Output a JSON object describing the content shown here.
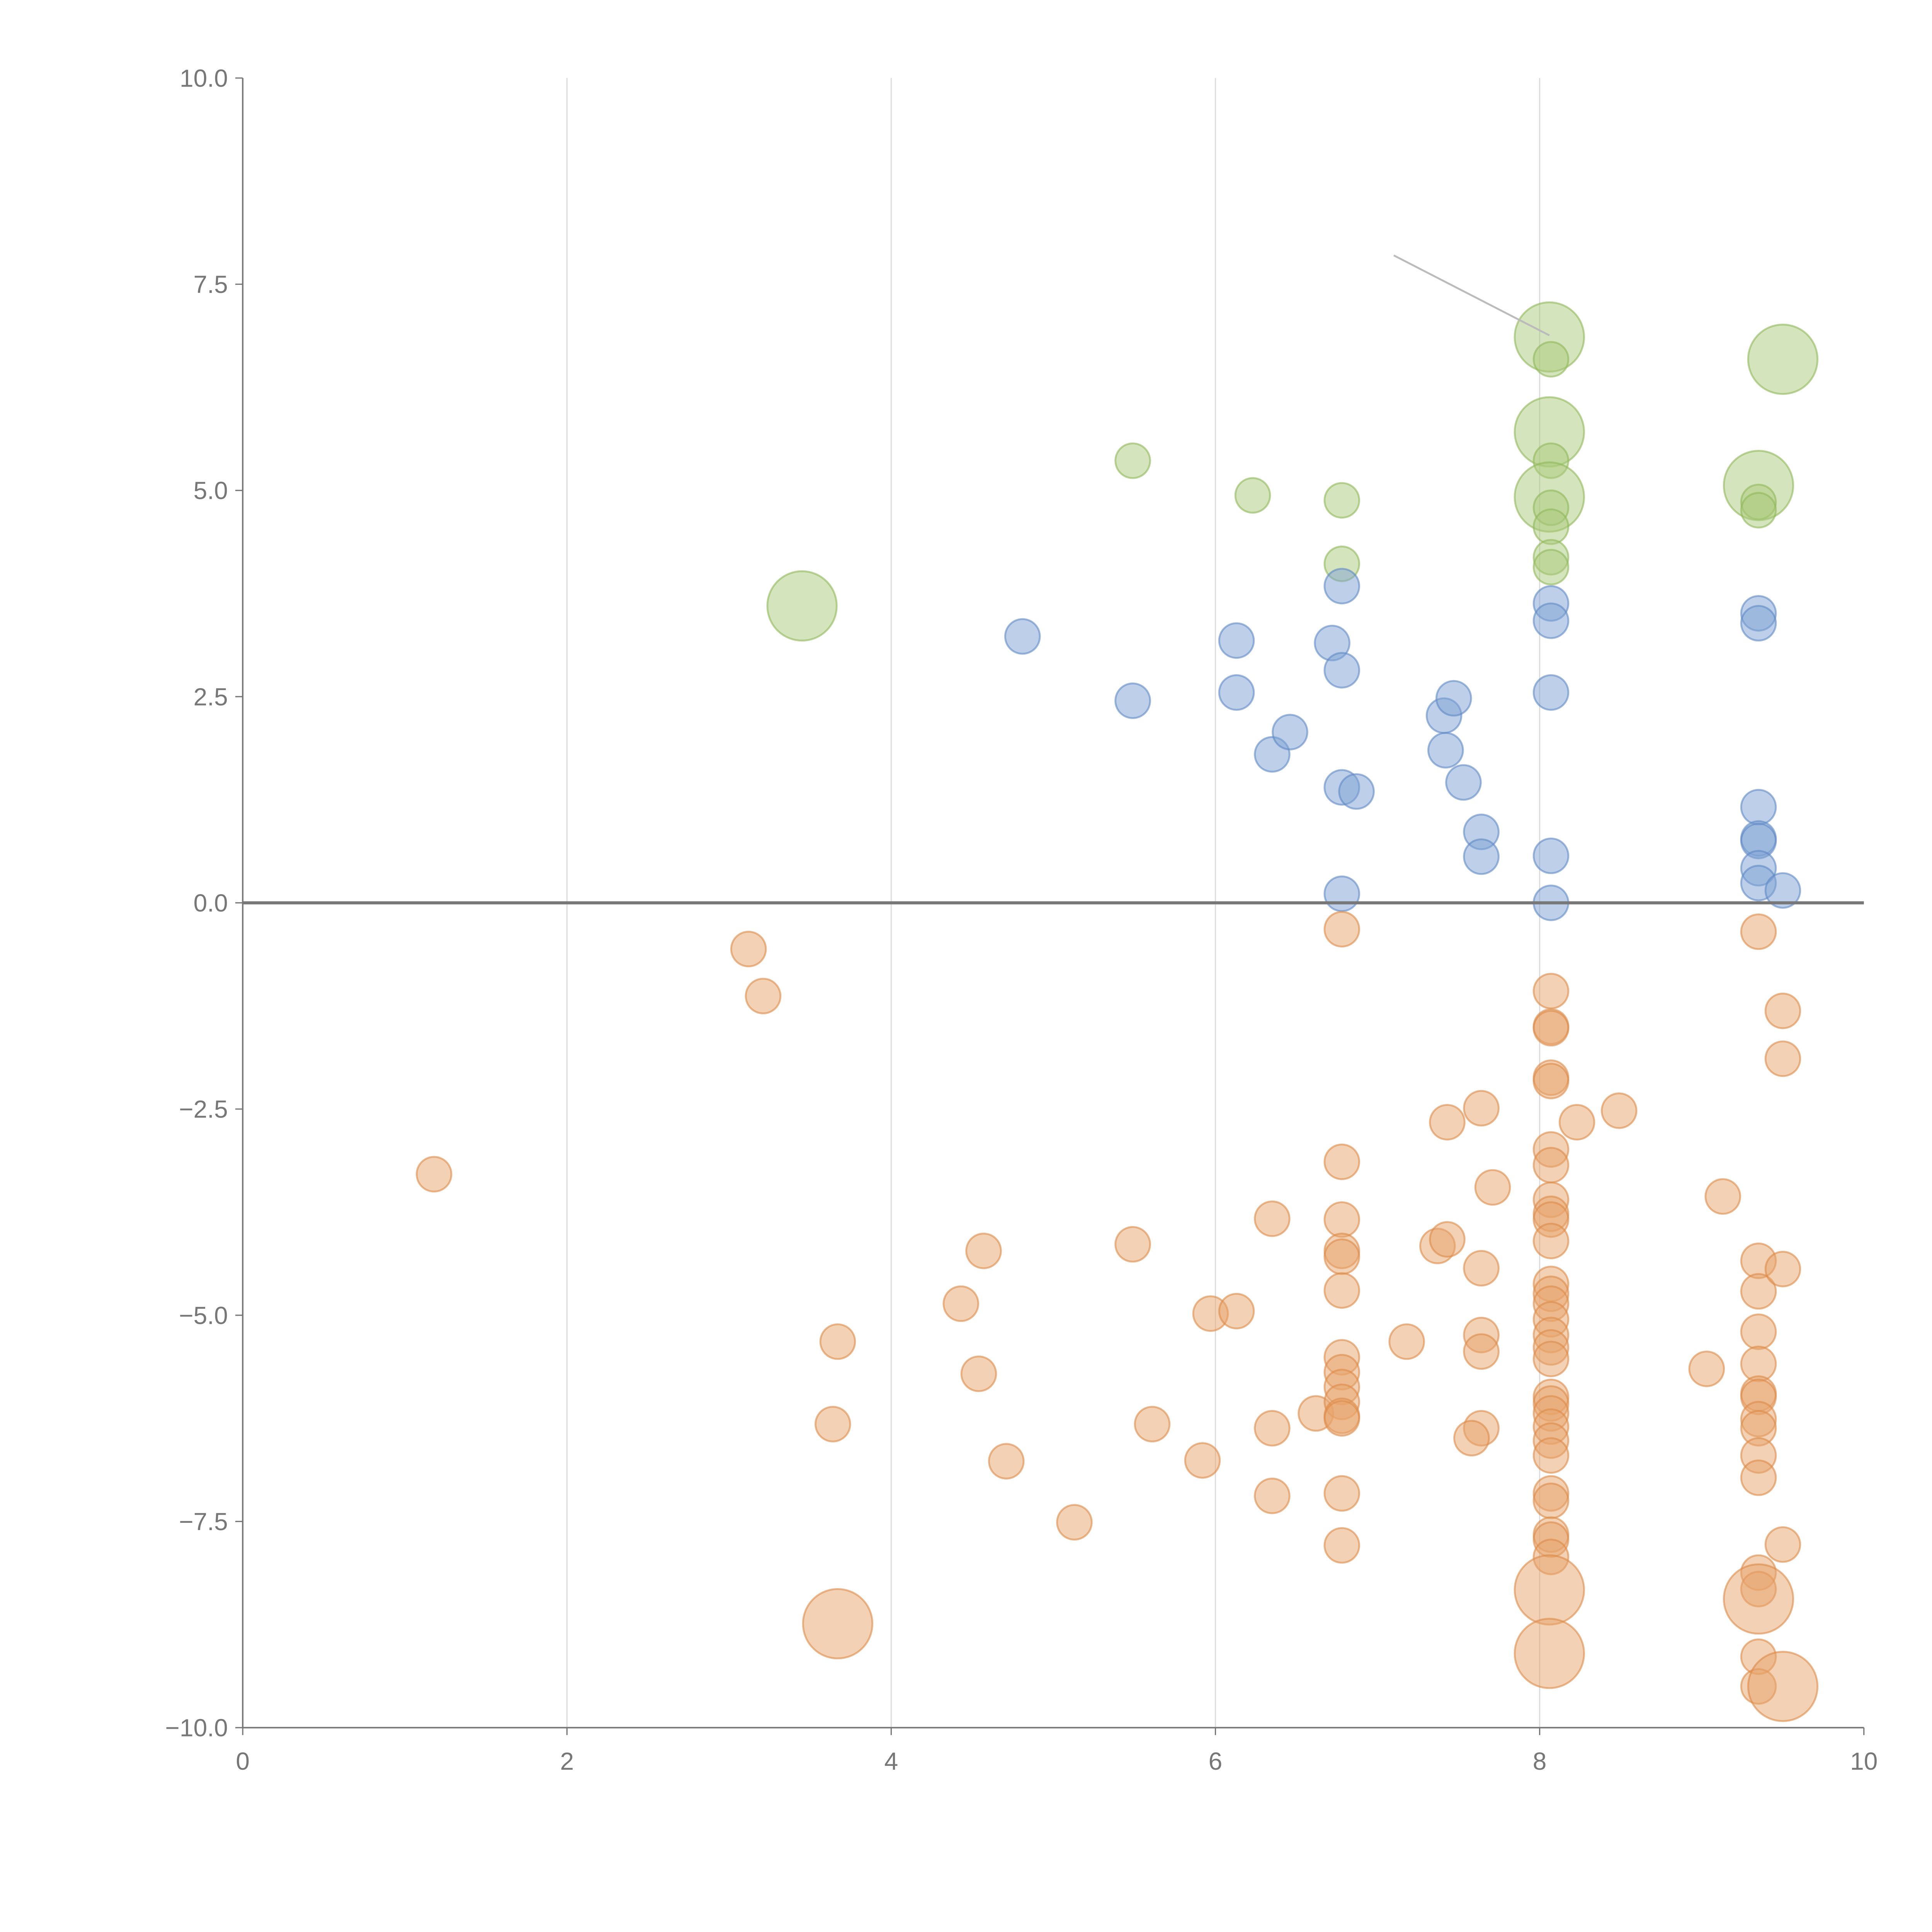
{
  "chart_data": {
    "type": "scatter",
    "title": "",
    "xlabel": "",
    "ylabel": "",
    "xlim": [
      0,
      10
    ],
    "ylim": [
      -10,
      10
    ],
    "x_ticks": [
      "0",
      "2",
      "4",
      "6",
      "8",
      "10"
    ],
    "x_tick_values": [
      0,
      2,
      4,
      6,
      8,
      10
    ],
    "y_ticks": [
      "10.0",
      "7.5",
      "5.0",
      "2.5",
      "0.0",
      "−2.5",
      "−5.0",
      "−7.5",
      "−10.0"
    ],
    "y_tick_values": [
      10,
      7.5,
      5,
      2.5,
      0,
      -2.5,
      -5,
      -7.5,
      -10
    ],
    "grid": "vertical",
    "zero_line": 0,
    "annotation_line": {
      "from": [
        7.1,
        7.85
      ],
      "to": [
        8.06,
        6.88
      ]
    },
    "point_format": "[x, y, size]",
    "series": [
      {
        "name": "green",
        "color": "#a9c97a",
        "stroke": "#8fb85a",
        "points": [
          [
            5.49,
            5.36,
            1
          ],
          [
            6.23,
            4.94,
            1
          ],
          [
            6.78,
            4.88,
            1
          ],
          [
            6.78,
            4.11,
            1
          ],
          [
            3.45,
            3.6,
            4
          ],
          [
            8.06,
            6.86,
            4
          ],
          [
            8.07,
            6.59,
            1
          ],
          [
            8.06,
            5.71,
            4
          ],
          [
            8.07,
            5.36,
            1
          ],
          [
            8.06,
            4.92,
            4
          ],
          [
            8.07,
            4.79,
            1
          ],
          [
            8.07,
            4.56,
            1
          ],
          [
            8.07,
            4.19,
            1
          ],
          [
            8.07,
            4.07,
            1
          ],
          [
            9.5,
            6.59,
            4
          ],
          [
            9.35,
            5.06,
            4
          ],
          [
            9.35,
            4.86,
            1
          ],
          [
            9.35,
            4.76,
            1
          ]
        ]
      },
      {
        "name": "blue",
        "color": "#7da1d4",
        "stroke": "#5f88c4",
        "points": [
          [
            4.81,
            3.23,
            1
          ],
          [
            5.49,
            2.45,
            1
          ],
          [
            6.13,
            3.18,
            1
          ],
          [
            6.13,
            2.55,
            1
          ],
          [
            6.35,
            1.8,
            1
          ],
          [
            6.46,
            2.07,
            1
          ],
          [
            6.72,
            3.15,
            1
          ],
          [
            6.78,
            3.84,
            1
          ],
          [
            6.78,
            2.82,
            1
          ],
          [
            6.78,
            1.4,
            1
          ],
          [
            6.87,
            1.35,
            1
          ],
          [
            6.78,
            0.11,
            1
          ],
          [
            7.41,
            2.27,
            1
          ],
          [
            7.47,
            2.48,
            1
          ],
          [
            7.42,
            1.85,
            1
          ],
          [
            7.53,
            1.46,
            1
          ],
          [
            7.64,
            0.86,
            1
          ],
          [
            7.64,
            0.56,
            1
          ],
          [
            8.07,
            3.63,
            1
          ],
          [
            8.07,
            3.42,
            1
          ],
          [
            8.07,
            2.55,
            1
          ],
          [
            8.07,
            0.57,
            1
          ],
          [
            8.07,
            0.0,
            1
          ],
          [
            9.35,
            3.51,
            1
          ],
          [
            9.35,
            3.39,
            1
          ],
          [
            9.35,
            1.16,
            1
          ],
          [
            9.35,
            0.78,
            1
          ],
          [
            9.35,
            0.75,
            1
          ],
          [
            9.35,
            0.42,
            1
          ],
          [
            9.35,
            0.24,
            1
          ],
          [
            9.5,
            0.15,
            1
          ]
        ]
      },
      {
        "name": "orange",
        "color": "#e8a46c",
        "stroke": "#dc8a48",
        "points": [
          [
            1.18,
            -3.29,
            1
          ],
          [
            3.12,
            -0.56,
            1
          ],
          [
            3.21,
            -1.13,
            1
          ],
          [
            3.67,
            -5.32,
            1
          ],
          [
            3.64,
            -6.32,
            1
          ],
          [
            3.67,
            -8.74,
            4
          ],
          [
            4.43,
            -4.86,
            1
          ],
          [
            4.57,
            -4.22,
            1
          ],
          [
            4.54,
            -5.71,
            1
          ],
          [
            4.71,
            -6.77,
            1
          ],
          [
            5.13,
            -7.51,
            1
          ],
          [
            5.49,
            -4.14,
            1
          ],
          [
            5.61,
            -6.32,
            1
          ],
          [
            5.92,
            -6.76,
            1
          ],
          [
            5.97,
            -4.98,
            1
          ],
          [
            6.13,
            -4.95,
            1
          ],
          [
            6.35,
            -3.83,
            1
          ],
          [
            6.35,
            -6.37,
            1
          ],
          [
            6.35,
            -7.19,
            1
          ],
          [
            6.62,
            -6.19,
            1
          ],
          [
            6.78,
            -0.32,
            1
          ],
          [
            6.78,
            -3.14,
            1
          ],
          [
            6.78,
            -3.84,
            1
          ],
          [
            6.78,
            -4.22,
            1
          ],
          [
            6.78,
            -4.29,
            1
          ],
          [
            6.78,
            -4.7,
            1
          ],
          [
            6.78,
            -5.51,
            1
          ],
          [
            6.78,
            -5.69,
            1
          ],
          [
            6.78,
            -5.87,
            1
          ],
          [
            6.78,
            -6.05,
            1
          ],
          [
            6.78,
            -6.22,
            1
          ],
          [
            6.78,
            -6.25,
            1
          ],
          [
            6.78,
            -7.16,
            1
          ],
          [
            6.78,
            -7.79,
            1
          ],
          [
            7.18,
            -5.32,
            1
          ],
          [
            7.37,
            -4.16,
            1
          ],
          [
            7.43,
            -4.08,
            1
          ],
          [
            7.43,
            -2.66,
            1
          ],
          [
            7.64,
            -2.49,
            1
          ],
          [
            7.71,
            -3.45,
            1
          ],
          [
            7.64,
            -4.43,
            1
          ],
          [
            7.64,
            -5.24,
            1
          ],
          [
            7.64,
            -5.44,
            1
          ],
          [
            7.64,
            -6.37,
            1
          ],
          [
            7.58,
            -6.49,
            1
          ],
          [
            8.23,
            -2.66,
            1
          ],
          [
            8.49,
            -2.52,
            1
          ],
          [
            8.07,
            -1.07,
            1
          ],
          [
            8.07,
            -1.5,
            1
          ],
          [
            8.07,
            -1.52,
            1
          ],
          [
            8.07,
            -2.12,
            1
          ],
          [
            8.07,
            -2.16,
            1
          ],
          [
            8.07,
            -2.99,
            1
          ],
          [
            8.07,
            -3.18,
            1
          ],
          [
            8.07,
            -3.6,
            1
          ],
          [
            8.07,
            -3.77,
            1
          ],
          [
            8.07,
            -3.84,
            1
          ],
          [
            8.07,
            -4.1,
            1
          ],
          [
            8.07,
            -4.62,
            1
          ],
          [
            8.07,
            -4.74,
            1
          ],
          [
            8.07,
            -4.86,
            1
          ],
          [
            8.07,
            -5.05,
            1
          ],
          [
            8.07,
            -5.24,
            1
          ],
          [
            8.07,
            -5.39,
            1
          ],
          [
            8.07,
            -5.53,
            1
          ],
          [
            8.07,
            -5.99,
            1
          ],
          [
            8.07,
            -6.07,
            1
          ],
          [
            8.07,
            -6.19,
            1
          ],
          [
            8.07,
            -6.35,
            1
          ],
          [
            8.07,
            -6.52,
            1
          ],
          [
            8.07,
            -6.7,
            1
          ],
          [
            8.07,
            -7.16,
            1
          ],
          [
            8.07,
            -7.25,
            1
          ],
          [
            8.07,
            -7.66,
            1
          ],
          [
            8.07,
            -7.72,
            1
          ],
          [
            8.07,
            -7.93,
            1
          ],
          [
            8.06,
            -8.33,
            4
          ],
          [
            8.06,
            -9.1,
            4
          ],
          [
            9.13,
            -3.56,
            1
          ],
          [
            9.03,
            -5.65,
            1
          ],
          [
            9.35,
            -0.35,
            1
          ],
          [
            9.35,
            -4.34,
            1
          ],
          [
            9.35,
            -4.71,
            1
          ],
          [
            9.35,
            -5.2,
            1
          ],
          [
            9.35,
            -5.59,
            1
          ],
          [
            9.35,
            -5.95,
            1
          ],
          [
            9.35,
            -5.99,
            1
          ],
          [
            9.35,
            -6.26,
            1
          ],
          [
            9.35,
            -6.37,
            1
          ],
          [
            9.35,
            -6.7,
            1
          ],
          [
            9.35,
            -6.97,
            1
          ],
          [
            9.35,
            -8.12,
            1
          ],
          [
            9.35,
            -8.32,
            1
          ],
          [
            9.35,
            -8.44,
            4
          ],
          [
            9.35,
            -9.14,
            1
          ],
          [
            9.35,
            -9.5,
            1
          ],
          [
            9.5,
            -9.5,
            4
          ],
          [
            9.5,
            -1.31,
            1
          ],
          [
            9.5,
            -1.89,
            1
          ],
          [
            9.5,
            -4.44,
            1
          ],
          [
            9.5,
            -7.78,
            1
          ]
        ]
      }
    ]
  }
}
